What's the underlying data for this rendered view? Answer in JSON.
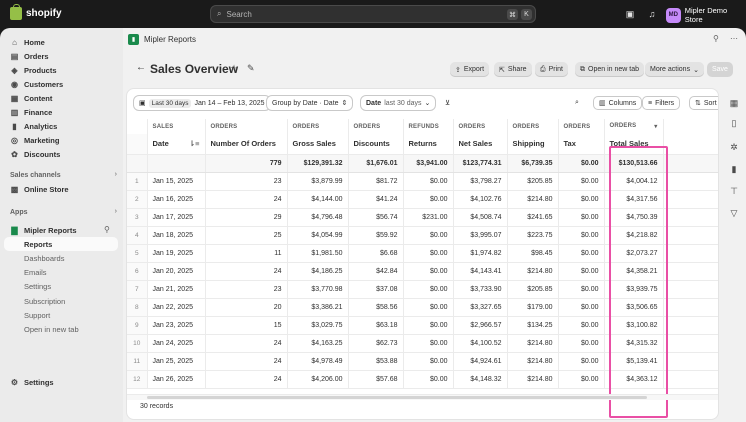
{
  "topbar": {
    "brand": "shopify",
    "search_placeholder": "Search",
    "shortcut_keys": [
      "⌘",
      "K"
    ],
    "store_initials": "MD",
    "store_name": "Mipler Demo Store"
  },
  "sidebar": {
    "main_items": [
      {
        "label": "Home",
        "icon": "home-icon"
      },
      {
        "label": "Orders",
        "icon": "orders-icon"
      },
      {
        "label": "Products",
        "icon": "tag-icon"
      },
      {
        "label": "Customers",
        "icon": "person-icon"
      },
      {
        "label": "Content",
        "icon": "content-icon"
      },
      {
        "label": "Finance",
        "icon": "bank-icon"
      },
      {
        "label": "Analytics",
        "icon": "chart-icon"
      },
      {
        "label": "Marketing",
        "icon": "target-icon"
      },
      {
        "label": "Discounts",
        "icon": "discount-icon"
      }
    ],
    "sales_channels_label": "Sales channels",
    "online_store_label": "Online Store",
    "apps_label": "Apps",
    "app_name": "Mipler Reports",
    "app_subitems": [
      "Reports",
      "Dashboards",
      "Emails",
      "Settings",
      "Subscription",
      "Support",
      "Open in new tab"
    ],
    "active_subitem": "Reports",
    "settings_label": "Settings"
  },
  "app_header": {
    "name": "Mipler Reports"
  },
  "page": {
    "title": "Sales Overview",
    "actions": {
      "export": "Export",
      "share": "Share",
      "print": "Print",
      "open_new_tab": "Open in new tab",
      "more_actions": "More actions",
      "save": "Save"
    }
  },
  "filters": {
    "date_tag": "Last 30 days",
    "date_range": "Jan 14 – Feb 13, 2025",
    "group_by": "Group by Date · Date",
    "date_filter_label": "Date",
    "date_filter_value": "last 30 days",
    "columns_label": "Columns",
    "filters_label": "Filters",
    "sort_label": "Sort"
  },
  "table": {
    "groups": [
      "SALES",
      "ORDERS",
      "ORDERS",
      "ORDERS",
      "REFUNDS",
      "ORDERS",
      "ORDERS",
      "ORDERS",
      "ORDERS"
    ],
    "headers": [
      "Date",
      "Number Of Orders",
      "Gross Sales",
      "Discounts",
      "Returns",
      "Net Sales",
      "Shipping",
      "Tax",
      "Total Sales"
    ],
    "totals": [
      "",
      "779",
      "$129,391.32",
      "$1,676.01",
      "$3,941.00",
      "$123,774.31",
      "$6,739.35",
      "$0.00",
      "$130,513.66"
    ],
    "rows": [
      {
        "n": "1",
        "date": "Jan 15, 2025",
        "orders": "23",
        "gross": "$3,879.99",
        "disc": "$81.72",
        "ret": "$0.00",
        "net": "$3,798.27",
        "ship": "$205.85",
        "tax": "$0.00",
        "total": "$4,004.12"
      },
      {
        "n": "2",
        "date": "Jan 16, 2025",
        "orders": "24",
        "gross": "$4,144.00",
        "disc": "$41.24",
        "ret": "$0.00",
        "net": "$4,102.76",
        "ship": "$214.80",
        "tax": "$0.00",
        "total": "$4,317.56"
      },
      {
        "n": "3",
        "date": "Jan 17, 2025",
        "orders": "29",
        "gross": "$4,796.48",
        "disc": "$56.74",
        "ret": "$231.00",
        "net": "$4,508.74",
        "ship": "$241.65",
        "tax": "$0.00",
        "total": "$4,750.39"
      },
      {
        "n": "4",
        "date": "Jan 18, 2025",
        "orders": "25",
        "gross": "$4,054.99",
        "disc": "$59.92",
        "ret": "$0.00",
        "net": "$3,995.07",
        "ship": "$223.75",
        "tax": "$0.00",
        "total": "$4,218.82"
      },
      {
        "n": "5",
        "date": "Jan 19, 2025",
        "orders": "11",
        "gross": "$1,981.50",
        "disc": "$6.68",
        "ret": "$0.00",
        "net": "$1,974.82",
        "ship": "$98.45",
        "tax": "$0.00",
        "total": "$2,073.27"
      },
      {
        "n": "6",
        "date": "Jan 20, 2025",
        "orders": "24",
        "gross": "$4,186.25",
        "disc": "$42.84",
        "ret": "$0.00",
        "net": "$4,143.41",
        "ship": "$214.80",
        "tax": "$0.00",
        "total": "$4,358.21"
      },
      {
        "n": "7",
        "date": "Jan 21, 2025",
        "orders": "23",
        "gross": "$3,770.98",
        "disc": "$37.08",
        "ret": "$0.00",
        "net": "$3,733.90",
        "ship": "$205.85",
        "tax": "$0.00",
        "total": "$3,939.75"
      },
      {
        "n": "8",
        "date": "Jan 22, 2025",
        "orders": "20",
        "gross": "$3,386.21",
        "disc": "$58.56",
        "ret": "$0.00",
        "net": "$3,327.65",
        "ship": "$179.00",
        "tax": "$0.00",
        "total": "$3,506.65"
      },
      {
        "n": "9",
        "date": "Jan 23, 2025",
        "orders": "15",
        "gross": "$3,029.75",
        "disc": "$63.18",
        "ret": "$0.00",
        "net": "$2,966.57",
        "ship": "$134.25",
        "tax": "$0.00",
        "total": "$3,100.82"
      },
      {
        "n": "10",
        "date": "Jan 24, 2025",
        "orders": "24",
        "gross": "$4,163.25",
        "disc": "$62.73",
        "ret": "$0.00",
        "net": "$4,100.52",
        "ship": "$214.80",
        "tax": "$0.00",
        "total": "$4,315.32"
      },
      {
        "n": "11",
        "date": "Jan 25, 2025",
        "orders": "24",
        "gross": "$4,978.49",
        "disc": "$53.88",
        "ret": "$0.00",
        "net": "$4,924.61",
        "ship": "$214.80",
        "tax": "$0.00",
        "total": "$5,139.41"
      },
      {
        "n": "12",
        "date": "Jan 26, 2025",
        "orders": "24",
        "gross": "$4,206.00",
        "disc": "$57.68",
        "ret": "$0.00",
        "net": "$4,148.32",
        "ship": "$214.80",
        "tax": "$0.00",
        "total": "$4,363.12"
      }
    ],
    "record_count": "30 records"
  },
  "colors": {
    "highlight": "#e94fa5",
    "brand_green": "#95bf47",
    "app_icon": "#1a8a4c"
  }
}
